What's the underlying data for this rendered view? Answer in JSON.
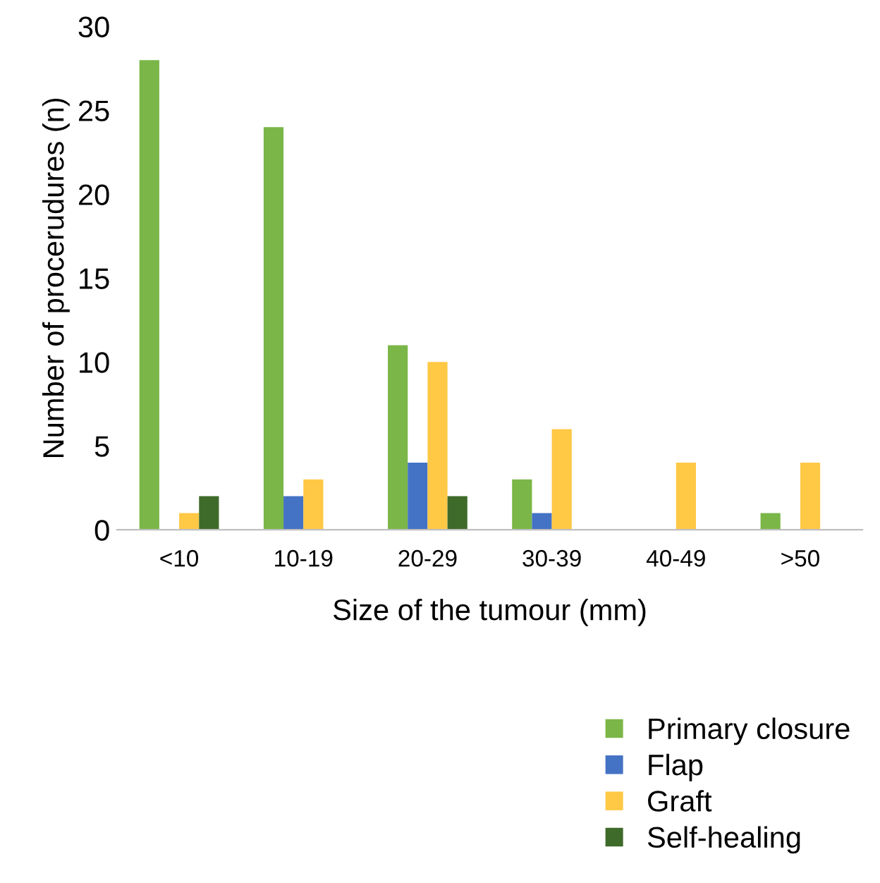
{
  "chart_data": {
    "type": "bar",
    "xlabel": "Size of the tumour (mm)",
    "ylabel": "Number of procerudures (n)",
    "categories": [
      "<10",
      "10-19",
      "20-29",
      "30-39",
      "40-49",
      ">50"
    ],
    "series": [
      {
        "name": "Primary closure",
        "color": "#7ab648",
        "values": [
          28,
          24,
          11,
          3,
          0,
          1
        ]
      },
      {
        "name": "Flap",
        "color": "#4472c4",
        "values": [
          0,
          2,
          4,
          1,
          0,
          0
        ]
      },
      {
        "name": "Graft",
        "color": "#ffc845",
        "values": [
          1,
          3,
          10,
          6,
          4,
          4
        ]
      },
      {
        "name": "Self-healing",
        "color": "#3e6b2a",
        "values": [
          2,
          0,
          2,
          0,
          0,
          0
        ]
      }
    ],
    "ylim": [
      0,
      30
    ],
    "yticks": [
      0,
      5,
      10,
      15,
      20,
      25,
      30
    ],
    "grid": false,
    "legend": "bottom right"
  }
}
